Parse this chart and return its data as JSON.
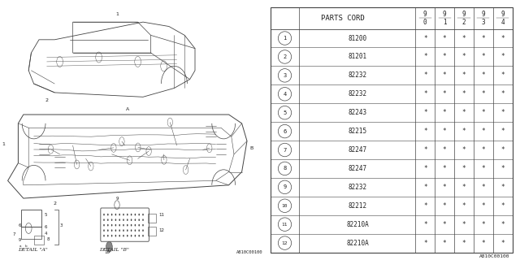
{
  "header": "PARTS CORD",
  "col_headers": [
    "9\n0",
    "9\n1",
    "9\n2",
    "9\n3",
    "9\n4"
  ],
  "rows": [
    {
      "num": "1",
      "part": "81200",
      "marks": [
        "*",
        "*",
        "*",
        "*",
        "*"
      ]
    },
    {
      "num": "2",
      "part": "81201",
      "marks": [
        "*",
        "*",
        "*",
        "*",
        "*"
      ]
    },
    {
      "num": "3",
      "part": "82232",
      "marks": [
        "*",
        "*",
        "*",
        "*",
        "*"
      ]
    },
    {
      "num": "4",
      "part": "82232",
      "marks": [
        "*",
        "*",
        "*",
        "*",
        "*"
      ]
    },
    {
      "num": "5",
      "part": "82243",
      "marks": [
        "*",
        "*",
        "*",
        "*",
        "*"
      ]
    },
    {
      "num": "6",
      "part": "82215",
      "marks": [
        "*",
        "*",
        "*",
        "*",
        "*"
      ]
    },
    {
      "num": "7",
      "part": "82247",
      "marks": [
        "*",
        "*",
        "*",
        "*",
        "*"
      ]
    },
    {
      "num": "8",
      "part": "82247",
      "marks": [
        "*",
        "*",
        "*",
        "*",
        "*"
      ]
    },
    {
      "num": "9",
      "part": "82232",
      "marks": [
        "*",
        "*",
        "*",
        "*",
        "*"
      ]
    },
    {
      "num": "10",
      "part": "82212",
      "marks": [
        "*",
        "*",
        "*",
        "*",
        "*"
      ]
    },
    {
      "num": "11",
      "part": "82210A",
      "marks": [
        "*",
        "*",
        "*",
        "*",
        "*"
      ]
    },
    {
      "num": "12",
      "part": "82210A",
      "marks": [
        "*",
        "*",
        "*",
        "*",
        "*"
      ]
    }
  ],
  "footer": "A810C00100",
  "line_color": "#444444",
  "font_color": "#222222",
  "font_size": 6.0,
  "header_font_size": 6.5
}
